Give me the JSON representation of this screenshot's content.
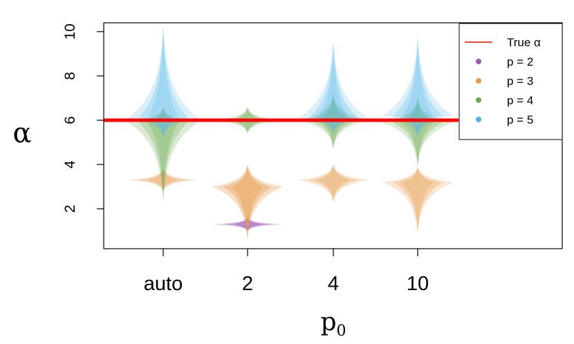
{
  "chart_data": {
    "type": "violin",
    "xlabel": "p",
    "xlabel_subscript": "0",
    "ylabel": "α",
    "categories": [
      "auto",
      "2",
      "4",
      "10"
    ],
    "ylim": [
      0.2,
      10.4
    ],
    "yticks": [
      2,
      4,
      6,
      8,
      10
    ],
    "true_value": 6,
    "legend_position": "top-right",
    "colors": {
      "true_line": "#ff0000",
      "p2": "#9b59b6",
      "p3": "#e69a4a",
      "p4": "#6aa84f",
      "p5": "#4fb3e6"
    },
    "legend": [
      {
        "label": "True α",
        "kind": "line",
        "colorKey": "true_line"
      },
      {
        "label": "p = 2",
        "kind": "dot",
        "colorKey": "p2"
      },
      {
        "label": "p = 3",
        "kind": "dot",
        "colorKey": "p3"
      },
      {
        "label": "p = 4",
        "kind": "dot",
        "colorKey": "p4"
      },
      {
        "label": "p = 5",
        "kind": "dot",
        "colorKey": "p5"
      }
    ],
    "violins": [
      {
        "category": "auto",
        "series": "p3",
        "center": 3.3,
        "min": 2.8,
        "max": 3.8,
        "halfwidth": 0.42,
        "opacity": 0.35
      },
      {
        "category": "auto",
        "series": "p4",
        "center": 5.9,
        "min": 2.3,
        "max": 6.6,
        "halfwidth": 0.42,
        "opacity": 0.35
      },
      {
        "category": "auto",
        "series": "p5",
        "center": 6.1,
        "min": 5.2,
        "max": 10.3,
        "halfwidth": 0.42,
        "opacity": 0.3
      },
      {
        "category": "2",
        "series": "p2",
        "center": 1.3,
        "min": 1.0,
        "max": 1.6,
        "halfwidth": 0.42,
        "opacity": 0.45
      },
      {
        "category": "2",
        "series": "p3",
        "center": 3.0,
        "min": 0.6,
        "max": 4.0,
        "halfwidth": 0.42,
        "opacity": 0.45
      },
      {
        "category": "2",
        "series": "p4",
        "center": 6.0,
        "min": 5.4,
        "max": 6.6,
        "halfwidth": 0.42,
        "opacity": 0.35
      },
      {
        "category": "4",
        "series": "p3",
        "center": 3.3,
        "min": 2.3,
        "max": 4.0,
        "halfwidth": 0.42,
        "opacity": 0.35
      },
      {
        "category": "4",
        "series": "p4",
        "center": 6.0,
        "min": 4.7,
        "max": 7.2,
        "halfwidth": 0.42,
        "opacity": 0.35
      },
      {
        "category": "4",
        "series": "p5",
        "center": 6.1,
        "min": 5.4,
        "max": 9.6,
        "halfwidth": 0.42,
        "opacity": 0.3
      },
      {
        "category": "10",
        "series": "p3",
        "center": 3.2,
        "min": 0.9,
        "max": 3.9,
        "halfwidth": 0.42,
        "opacity": 0.35
      },
      {
        "category": "10",
        "series": "p4",
        "center": 5.9,
        "min": 3.9,
        "max": 7.0,
        "halfwidth": 0.42,
        "opacity": 0.35
      },
      {
        "category": "10",
        "series": "p5",
        "center": 6.2,
        "min": 5.2,
        "max": 9.8,
        "halfwidth": 0.42,
        "opacity": 0.3
      }
    ]
  }
}
